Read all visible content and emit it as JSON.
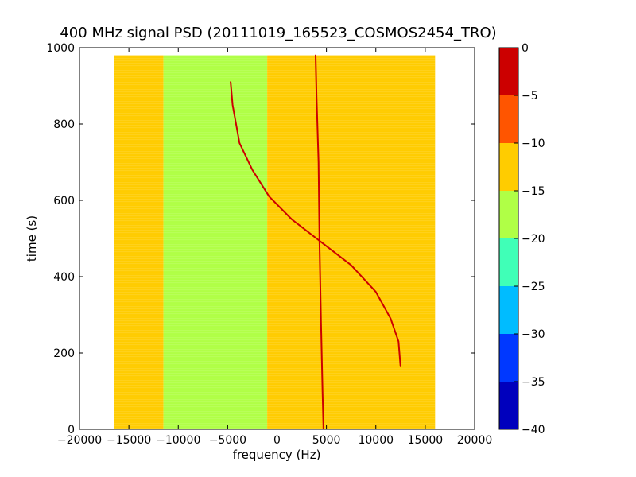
{
  "chart_data": {
    "type": "heatmap",
    "title": "400 MHz signal PSD (20111019_165523_COSMOS2454_TRO)",
    "xlabel": "frequency (Hz)",
    "ylabel": "time (s)",
    "xlim": [
      -20000,
      20000
    ],
    "ylim": [
      0,
      1000
    ],
    "xticks": [
      -20000,
      -15000,
      -10000,
      -5000,
      0,
      5000,
      10000,
      15000,
      20000
    ],
    "xtick_labels": [
      "−20000",
      "−15000",
      "−10000",
      "−5000",
      "0",
      "5000",
      "10000",
      "15000",
      "20000"
    ],
    "yticks": [
      0,
      200,
      400,
      600,
      800,
      1000
    ],
    "ytick_labels": [
      "0",
      "200",
      "400",
      "600",
      "800",
      "1000"
    ],
    "data_extent": {
      "x": [
        -16500,
        16000
      ],
      "y": [
        0,
        980
      ]
    },
    "bands": [
      {
        "x0": -16500,
        "x1": -11500,
        "value": -12.5
      },
      {
        "x0": -11500,
        "x1": -1000,
        "value": -17.5
      },
      {
        "x0": -1000,
        "x1": 16000,
        "value": -12.5
      }
    ],
    "signals": [
      {
        "description": "doppler curve",
        "value": -2.5,
        "points": [
          [
            -4700,
            910
          ],
          [
            -4500,
            850
          ],
          [
            -3800,
            750
          ],
          [
            -2500,
            680
          ],
          [
            -800,
            610
          ],
          [
            1500,
            550
          ],
          [
            4500,
            490
          ],
          [
            7500,
            430
          ],
          [
            10000,
            360
          ],
          [
            11500,
            290
          ],
          [
            12300,
            230
          ],
          [
            12500,
            165
          ]
        ]
      },
      {
        "description": "carrier line",
        "value": -2.5,
        "points": [
          [
            3900,
            980
          ],
          [
            4000,
            870
          ],
          [
            4200,
            700
          ],
          [
            4300,
            490
          ],
          [
            4450,
            280
          ],
          [
            4600,
            100
          ],
          [
            4700,
            0
          ]
        ]
      }
    ],
    "colorbar": {
      "levels": [
        -40,
        -35,
        -30,
        -25,
        -20,
        -15,
        -10,
        -5,
        0
      ],
      "tick_labels": [
        "−40",
        "−35",
        "−30",
        "−25",
        "−20",
        "−15",
        "−10",
        "−5",
        "0"
      ],
      "colors": [
        "#0000bd",
        "#0038ff",
        "#00bcff",
        "#40ffb7",
        "#b0ff46",
        "#ffcc00",
        "#ff5500",
        "#cc0000"
      ]
    }
  }
}
